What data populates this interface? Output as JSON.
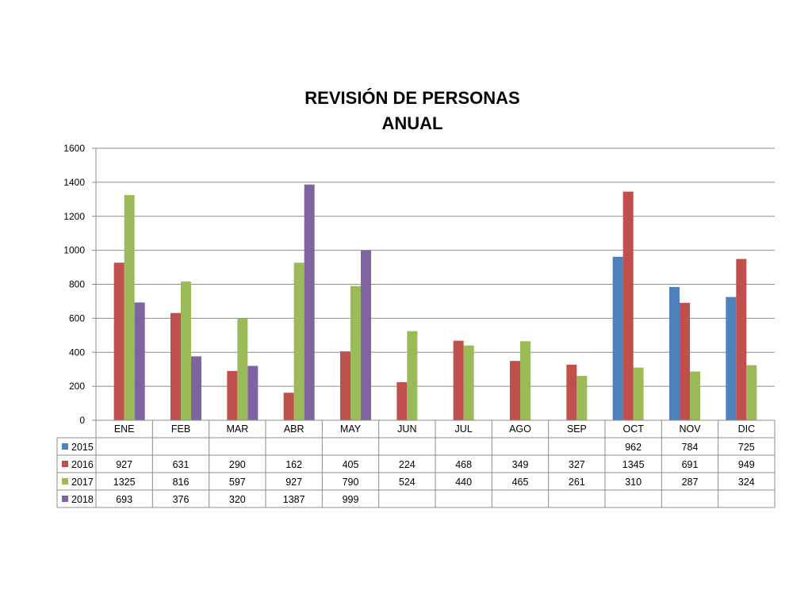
{
  "chart_data": {
    "type": "bar",
    "title_lines": [
      "REVISIÓN DE PERSONAS",
      "ANUAL"
    ],
    "categories": [
      "ENE",
      "FEB",
      "MAR",
      "ABR",
      "MAY",
      "JUN",
      "JUL",
      "AGO",
      "SEP",
      "OCT",
      "NOV",
      "DIC"
    ],
    "series": [
      {
        "name": "2015",
        "color": "#4f81bd",
        "values": [
          null,
          null,
          null,
          null,
          null,
          null,
          null,
          null,
          null,
          962,
          784,
          725
        ]
      },
      {
        "name": "2016",
        "color": "#c0504d",
        "values": [
          927,
          631,
          290,
          162,
          405,
          224,
          468,
          349,
          327,
          1345,
          691,
          949
        ]
      },
      {
        "name": "2017",
        "color": "#9bbb59",
        "values": [
          1325,
          816,
          597,
          927,
          790,
          524,
          440,
          465,
          261,
          310,
          287,
          324
        ]
      },
      {
        "name": "2018",
        "color": "#8064a2",
        "values": [
          693,
          376,
          320,
          1387,
          999,
          null,
          null,
          null,
          null,
          null,
          null,
          null
        ]
      }
    ],
    "ylim": [
      0,
      1600
    ],
    "yticks": [
      0,
      200,
      400,
      600,
      800,
      1000,
      1200,
      1400,
      1600
    ],
    "grid": true,
    "legend": "data table below chart"
  }
}
